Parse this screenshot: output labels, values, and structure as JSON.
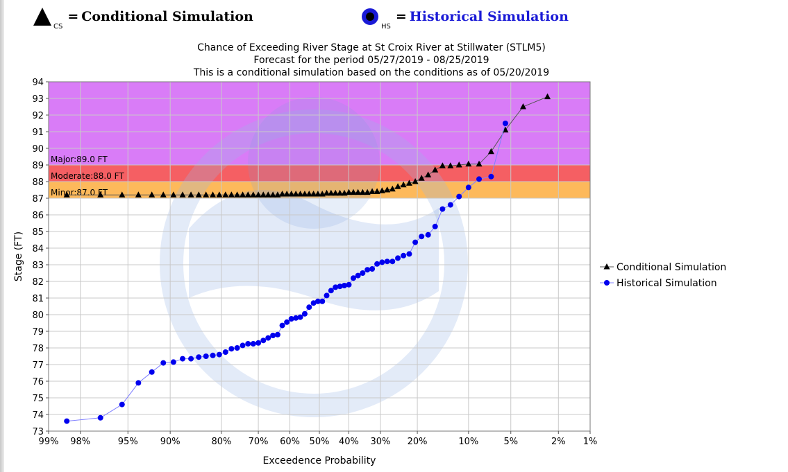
{
  "legend_top": {
    "cs_sub": "CS",
    "cs_label": "Conditional Simulation",
    "hs_sub": "HS",
    "hs_label": "Historical Simulation",
    "equals": "="
  },
  "chart_data": {
    "type": "line",
    "title_lines": [
      "Chance of Exceeding River Stage at St Croix River at Stillwater (STLM5)",
      "Forecast for the period 05/27/2019 - 08/25/2019",
      "This is a conditional simulation based on the conditions as of 05/20/2019"
    ],
    "xlabel": "Exceedence Probability",
    "ylabel": "Stage (FT)",
    "x_scale": "normal-probability (reversed, 99% to 1%)",
    "x_ticks": [
      {
        "p": 99,
        "label": "99%"
      },
      {
        "p": 98,
        "label": "98%"
      },
      {
        "p": 95,
        "label": "95%"
      },
      {
        "p": 90,
        "label": "90%"
      },
      {
        "p": 80,
        "label": "80%"
      },
      {
        "p": 70,
        "label": "70%"
      },
      {
        "p": 60,
        "label": "60%"
      },
      {
        "p": 50,
        "label": "50%"
      },
      {
        "p": 40,
        "label": "40%"
      },
      {
        "p": 30,
        "label": "30%"
      },
      {
        "p": 20,
        "label": "20%"
      },
      {
        "p": 10,
        "label": "10%"
      },
      {
        "p": 5,
        "label": "5%"
      },
      {
        "p": 2,
        "label": "2%"
      },
      {
        "p": 1,
        "label": "1%"
      }
    ],
    "ylim": [
      73,
      94
    ],
    "y_ticks": [
      73,
      74,
      75,
      76,
      77,
      78,
      79,
      80,
      81,
      82,
      83,
      84,
      85,
      86,
      87,
      88,
      89,
      90,
      91,
      92,
      93,
      94
    ],
    "grid": true,
    "legend_position": "right",
    "flood_bands": [
      {
        "label": "Major:89.0 FT",
        "from": 89,
        "to": 94,
        "color": "#d97cf7"
      },
      {
        "label": "Moderate:88.0 FT",
        "from": 88,
        "to": 89,
        "color": "#f55f63"
      },
      {
        "label": "Minor:87.0 FT",
        "from": 87,
        "to": 88,
        "color": "#fdb95b"
      }
    ],
    "series": [
      {
        "name": "Conditional Simulation",
        "marker": "triangle",
        "color": "#000000",
        "line_color": "#555555",
        "points": [
          [
            98.5,
            87.2
          ],
          [
            97.0,
            87.2
          ],
          [
            95.5,
            87.2
          ],
          [
            94.0,
            87.2
          ],
          [
            92.5,
            87.2
          ],
          [
            91.0,
            87.2
          ],
          [
            89.5,
            87.2
          ],
          [
            88.0,
            87.2
          ],
          [
            86.5,
            87.2
          ],
          [
            85.0,
            87.2
          ],
          [
            83.5,
            87.2
          ],
          [
            82.0,
            87.2
          ],
          [
            80.5,
            87.2
          ],
          [
            79.0,
            87.2
          ],
          [
            77.5,
            87.2
          ],
          [
            76.0,
            87.2
          ],
          [
            74.5,
            87.2
          ],
          [
            73.0,
            87.2
          ],
          [
            71.5,
            87.2
          ],
          [
            70.0,
            87.2
          ],
          [
            68.5,
            87.2
          ],
          [
            67.0,
            87.2
          ],
          [
            65.5,
            87.2
          ],
          [
            64.0,
            87.2
          ],
          [
            62.5,
            87.25
          ],
          [
            61.0,
            87.25
          ],
          [
            59.5,
            87.25
          ],
          [
            58.0,
            87.25
          ],
          [
            56.5,
            87.25
          ],
          [
            55.0,
            87.25
          ],
          [
            53.5,
            87.25
          ],
          [
            52.0,
            87.25
          ],
          [
            50.5,
            87.25
          ],
          [
            49.0,
            87.25
          ],
          [
            47.5,
            87.3
          ],
          [
            46.0,
            87.3
          ],
          [
            44.5,
            87.3
          ],
          [
            43.0,
            87.3
          ],
          [
            41.5,
            87.3
          ],
          [
            40.0,
            87.35
          ],
          [
            38.5,
            87.35
          ],
          [
            37.0,
            87.35
          ],
          [
            35.5,
            87.35
          ],
          [
            34.0,
            87.35
          ],
          [
            32.5,
            87.4
          ],
          [
            31.0,
            87.4
          ],
          [
            29.5,
            87.45
          ],
          [
            28.0,
            87.5
          ],
          [
            26.5,
            87.55
          ],
          [
            25.0,
            87.7
          ],
          [
            23.5,
            87.8
          ],
          [
            22.0,
            87.9
          ],
          [
            20.5,
            88.0
          ],
          [
            19.0,
            88.2
          ],
          [
            17.5,
            88.4
          ],
          [
            16.0,
            88.7
          ],
          [
            14.5,
            88.95
          ],
          [
            13.0,
            88.95
          ],
          [
            11.5,
            89.0
          ],
          [
            10.0,
            89.05
          ],
          [
            8.5,
            89.05
          ],
          [
            7.0,
            89.8
          ],
          [
            5.5,
            91.1
          ],
          [
            4.0,
            92.5
          ],
          [
            2.5,
            93.1
          ]
        ]
      },
      {
        "name": "Historical Simulation",
        "marker": "circle",
        "color": "#0000ee",
        "line_color": "#8080ff",
        "points": [
          [
            98.5,
            73.6
          ],
          [
            97.0,
            73.8
          ],
          [
            95.5,
            74.6
          ],
          [
            94.0,
            75.9
          ],
          [
            92.5,
            76.55
          ],
          [
            91.0,
            77.1
          ],
          [
            89.5,
            77.15
          ],
          [
            88.0,
            77.35
          ],
          [
            86.5,
            77.35
          ],
          [
            85.0,
            77.45
          ],
          [
            83.5,
            77.5
          ],
          [
            82.0,
            77.55
          ],
          [
            80.5,
            77.6
          ],
          [
            79.0,
            77.75
          ],
          [
            77.5,
            77.95
          ],
          [
            76.0,
            78.0
          ],
          [
            74.5,
            78.15
          ],
          [
            73.0,
            78.25
          ],
          [
            71.5,
            78.25
          ],
          [
            70.0,
            78.3
          ],
          [
            68.5,
            78.45
          ],
          [
            67.0,
            78.6
          ],
          [
            65.5,
            78.75
          ],
          [
            64.0,
            78.8
          ],
          [
            62.5,
            79.35
          ],
          [
            61.0,
            79.55
          ],
          [
            59.5,
            79.75
          ],
          [
            58.0,
            79.8
          ],
          [
            56.5,
            79.85
          ],
          [
            55.0,
            80.05
          ],
          [
            53.5,
            80.45
          ],
          [
            52.0,
            80.7
          ],
          [
            50.5,
            80.8
          ],
          [
            49.0,
            80.8
          ],
          [
            47.5,
            81.15
          ],
          [
            46.0,
            81.45
          ],
          [
            44.5,
            81.65
          ],
          [
            43.0,
            81.7
          ],
          [
            41.5,
            81.75
          ],
          [
            40.0,
            81.8
          ],
          [
            38.5,
            82.2
          ],
          [
            37.0,
            82.35
          ],
          [
            35.5,
            82.5
          ],
          [
            34.0,
            82.7
          ],
          [
            32.5,
            82.75
          ],
          [
            31.0,
            83.05
          ],
          [
            29.5,
            83.15
          ],
          [
            28.0,
            83.2
          ],
          [
            26.5,
            83.2
          ],
          [
            25.0,
            83.4
          ],
          [
            23.5,
            83.55
          ],
          [
            22.0,
            83.65
          ],
          [
            20.5,
            84.35
          ],
          [
            19.0,
            84.7
          ],
          [
            17.5,
            84.8
          ],
          [
            16.0,
            85.3
          ],
          [
            14.5,
            86.35
          ],
          [
            13.0,
            86.6
          ],
          [
            11.5,
            87.1
          ],
          [
            10.0,
            87.65
          ],
          [
            8.5,
            88.15
          ],
          [
            7.0,
            88.3
          ],
          [
            5.5,
            91.5
          ]
        ]
      }
    ]
  }
}
